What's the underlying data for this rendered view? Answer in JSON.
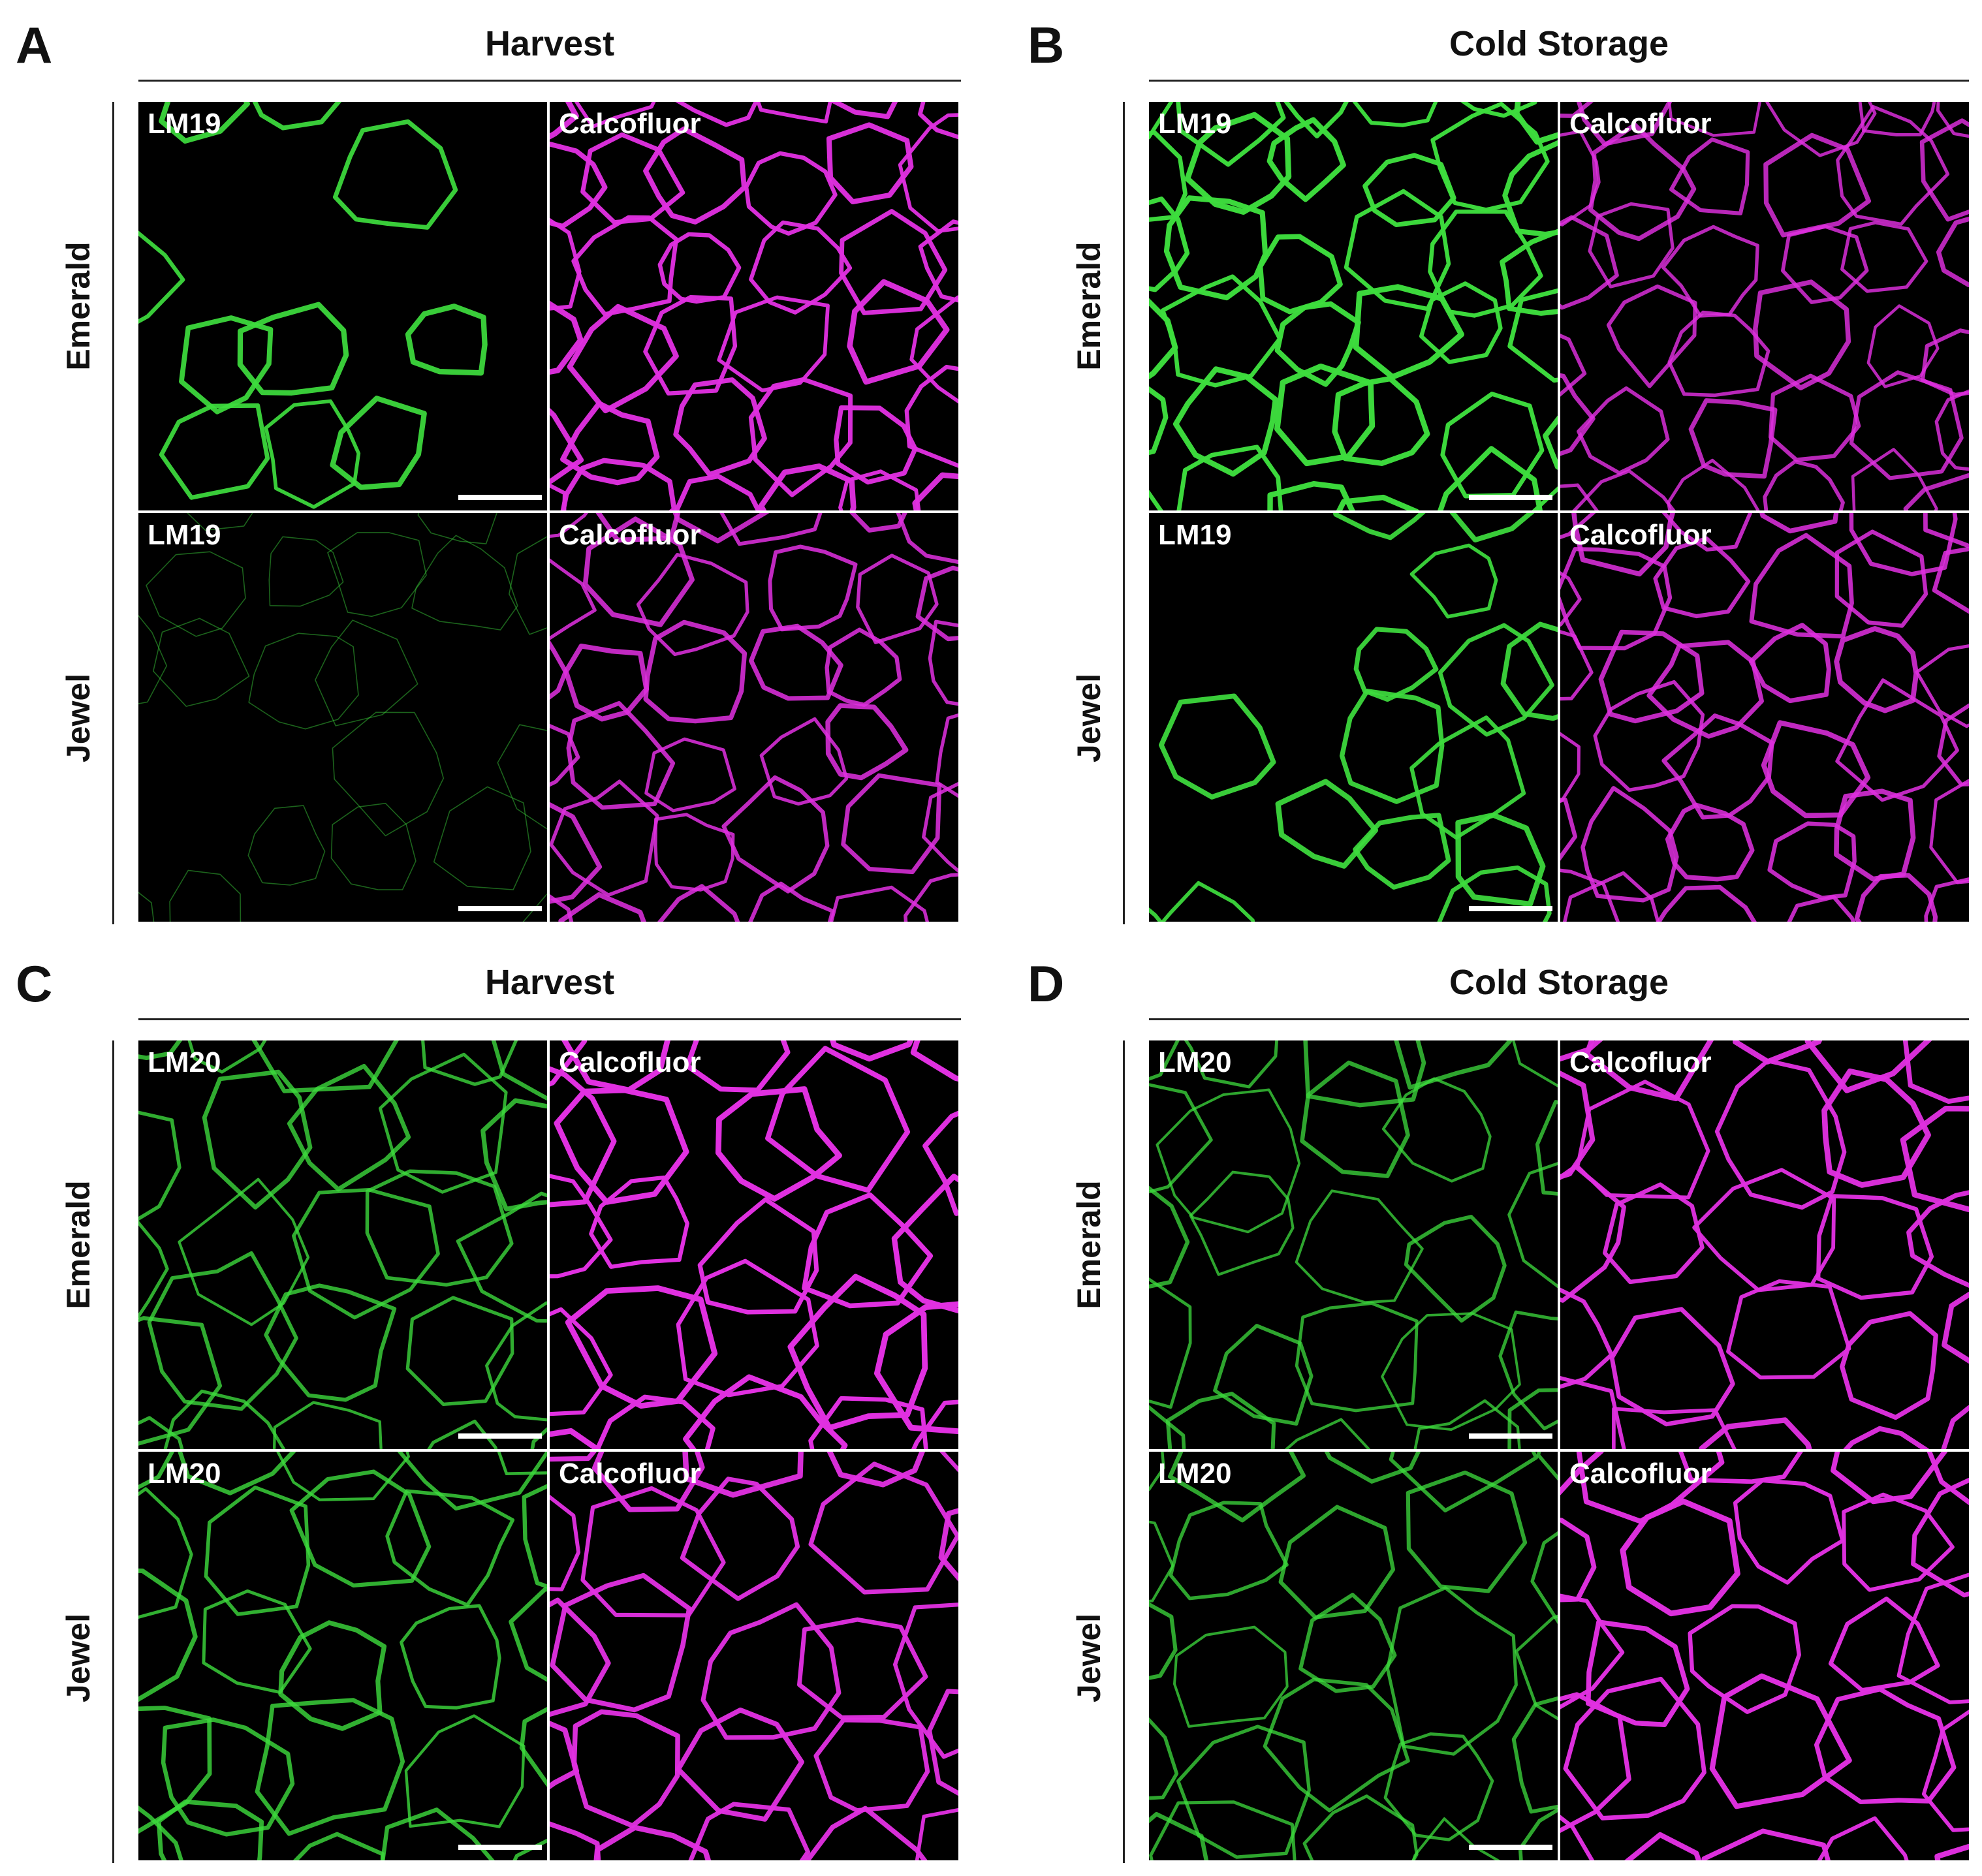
{
  "colors": {
    "background": "#ffffff",
    "tile_background": "#000000",
    "green_stain": "#3ddc3d",
    "magenta_stain": "#e030e0",
    "label_text": "#ffffff"
  },
  "panels": [
    {
      "letter": "A",
      "condition": "Harvest",
      "antibody": "LM19",
      "rows": [
        {
          "cultivar": "Emerald",
          "left_label": "LM19",
          "right_label": "Calcofluor",
          "green_level": 0.85,
          "green_pattern": "patchy",
          "magenta_level": 0.9
        },
        {
          "cultivar": "Jewel",
          "left_label": "LM19",
          "right_label": "Calcofluor",
          "green_level": 0.2,
          "green_pattern": "faint",
          "magenta_level": 0.7
        }
      ]
    },
    {
      "letter": "B",
      "condition": "Cold Storage",
      "antibody": "LM19",
      "rows": [
        {
          "cultivar": "Emerald",
          "left_label": "LM19",
          "right_label": "Calcofluor",
          "green_level": 0.95,
          "green_pattern": "network",
          "magenta_level": 0.6
        },
        {
          "cultivar": "Jewel",
          "left_label": "LM19",
          "right_label": "Calcofluor",
          "green_level": 0.85,
          "green_pattern": "patchy",
          "magenta_level": 0.7
        }
      ]
    },
    {
      "letter": "C",
      "condition": "Harvest",
      "antibody": "LM20",
      "rows": [
        {
          "cultivar": "Emerald",
          "left_label": "LM20",
          "right_label": "Calcofluor",
          "green_level": 0.5,
          "green_pattern": "network",
          "magenta_level": 1.0
        },
        {
          "cultivar": "Jewel",
          "left_label": "LM20",
          "right_label": "Calcofluor",
          "green_level": 0.55,
          "green_pattern": "network",
          "magenta_level": 0.9
        }
      ]
    },
    {
      "letter": "D",
      "condition": "Cold Storage",
      "antibody": "LM20",
      "rows": [
        {
          "cultivar": "Emerald",
          "left_label": "LM20",
          "right_label": "Calcofluor",
          "green_level": 0.45,
          "green_pattern": "network",
          "magenta_level": 0.9
        },
        {
          "cultivar": "Jewel",
          "left_label": "LM20",
          "right_label": "Calcofluor",
          "green_level": 0.45,
          "green_pattern": "network",
          "magenta_level": 0.95
        }
      ]
    }
  ]
}
